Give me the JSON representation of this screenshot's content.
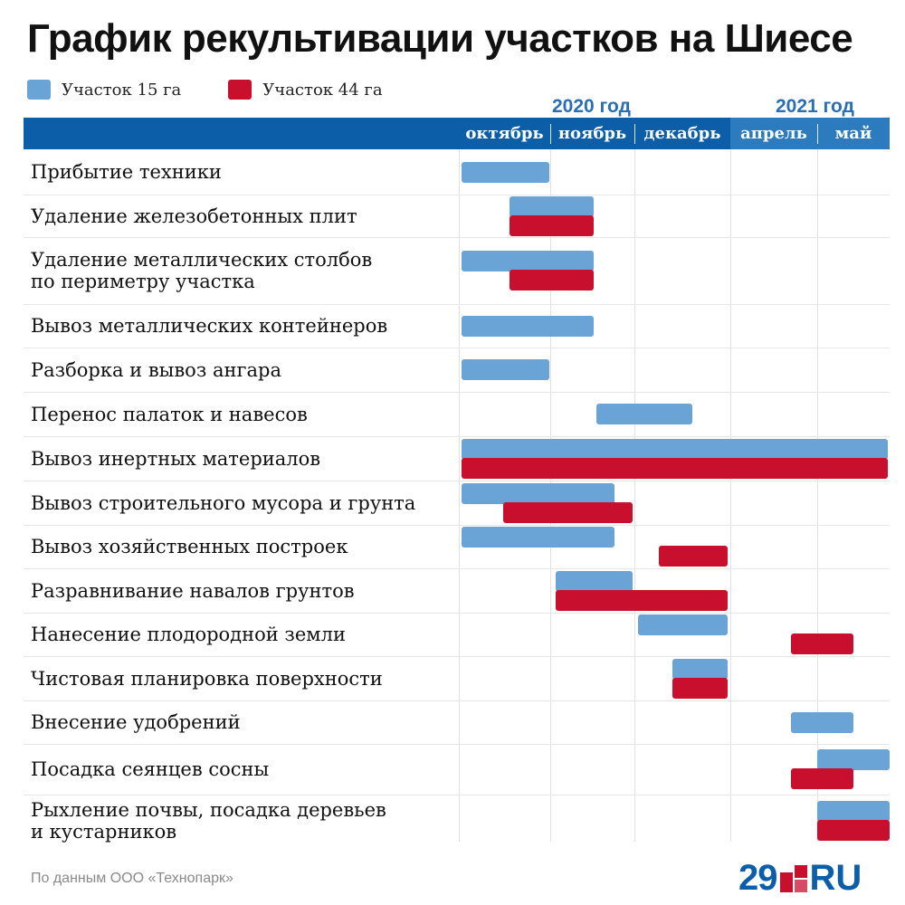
{
  "title": "График рекультивации участков на Шиесе",
  "legend": [
    {
      "label": "Участок 15 га",
      "color": "#6aa3d5"
    },
    {
      "label": "Участок 44 га",
      "color": "#c8102e"
    }
  ],
  "years": [
    "2020 год",
    "2021 год"
  ],
  "months": [
    "октябрь",
    "ноябрь",
    "декабрь",
    "апрель",
    "май"
  ],
  "footnote": "По данным ООО «Технопарк»",
  "logo": {
    "number": "29",
    "suffix": "RU"
  },
  "chart_data": {
    "type": "gantt",
    "title": "График рекультивации участков на Шиесе",
    "time_axis": [
      "октябрь 2020",
      "ноябрь 2020",
      "декабрь 2020",
      "апрель 2021",
      "май 2021"
    ],
    "unit": "months from start of October 2020 (0–5, April–May 2021 mapped to 3–5)",
    "series": [
      "Участок 15 га",
      "Участок 44 га"
    ],
    "tasks": [
      {
        "label": "Прибытие техники",
        "bars": [
          {
            "series": 0,
            "start": 0.03,
            "end": 0.99
          }
        ]
      },
      {
        "label": "Удаление железобетонных плит",
        "bars": [
          {
            "series": 0,
            "start": 0.55,
            "end": 1.52
          },
          {
            "series": 1,
            "start": 0.55,
            "end": 1.52
          }
        ]
      },
      {
        "label": "Удаление металлических столбов\nпо периметру участка",
        "bars": [
          {
            "series": 0,
            "start": 0.03,
            "end": 1.52
          },
          {
            "series": 1,
            "start": 0.55,
            "end": 1.52
          }
        ]
      },
      {
        "label": "Вывоз металлических контейнеров",
        "bars": [
          {
            "series": 0,
            "start": 0.03,
            "end": 1.52
          }
        ]
      },
      {
        "label": "Разборка и вывоз ангара",
        "bars": [
          {
            "series": 0,
            "start": 0.03,
            "end": 0.99
          }
        ]
      },
      {
        "label": "Перенос палаток и навесов",
        "bars": [
          {
            "series": 0,
            "start": 1.55,
            "end": 2.6
          }
        ]
      },
      {
        "label": "Вывоз инертных материалов",
        "bars": [
          {
            "series": 0,
            "start": 0.03,
            "end": 4.98
          },
          {
            "series": 1,
            "start": 0.03,
            "end": 4.98
          }
        ]
      },
      {
        "label": "Вывоз строительного мусора и грунта",
        "bars": [
          {
            "series": 0,
            "start": 0.03,
            "end": 1.76
          },
          {
            "series": 1,
            "start": 0.49,
            "end": 1.98
          }
        ]
      },
      {
        "label": "Вывоз хозяйственных построек",
        "bars": [
          {
            "series": 0,
            "start": 0.03,
            "end": 1.76
          },
          {
            "series": 1,
            "start": 2.25,
            "end": 2.97
          }
        ]
      },
      {
        "label": "Разравнивание навалов грунтов",
        "bars": [
          {
            "series": 0,
            "start": 1.06,
            "end": 1.98
          },
          {
            "series": 1,
            "start": 1.06,
            "end": 2.97
          }
        ]
      },
      {
        "label": "Нанесение плодородной земли",
        "bars": [
          {
            "series": 0,
            "start": 2.04,
            "end": 2.97
          },
          {
            "series": 1,
            "start": 3.7,
            "end": 4.5
          }
        ]
      },
      {
        "label": "Чистовая планировка поверхности",
        "bars": [
          {
            "series": 0,
            "start": 2.4,
            "end": 2.97
          },
          {
            "series": 1,
            "start": 2.4,
            "end": 2.97
          }
        ]
      },
      {
        "label": "Внесение удобрений",
        "bars": [
          {
            "series": 0,
            "start": 3.7,
            "end": 4.5
          }
        ]
      },
      {
        "label": "Посадка сеянцев сосны",
        "bars": [
          {
            "series": 0,
            "start": 4.0,
            "end": 5.0
          },
          {
            "series": 1,
            "start": 3.7,
            "end": 4.5
          }
        ]
      },
      {
        "label": "Рыхление почвы, посадка деревьев\nи кустарников",
        "bars": [
          {
            "series": 0,
            "start": 4.0,
            "end": 5.0
          },
          {
            "series": 1,
            "start": 4.0,
            "end": 5.0
          }
        ]
      }
    ]
  }
}
